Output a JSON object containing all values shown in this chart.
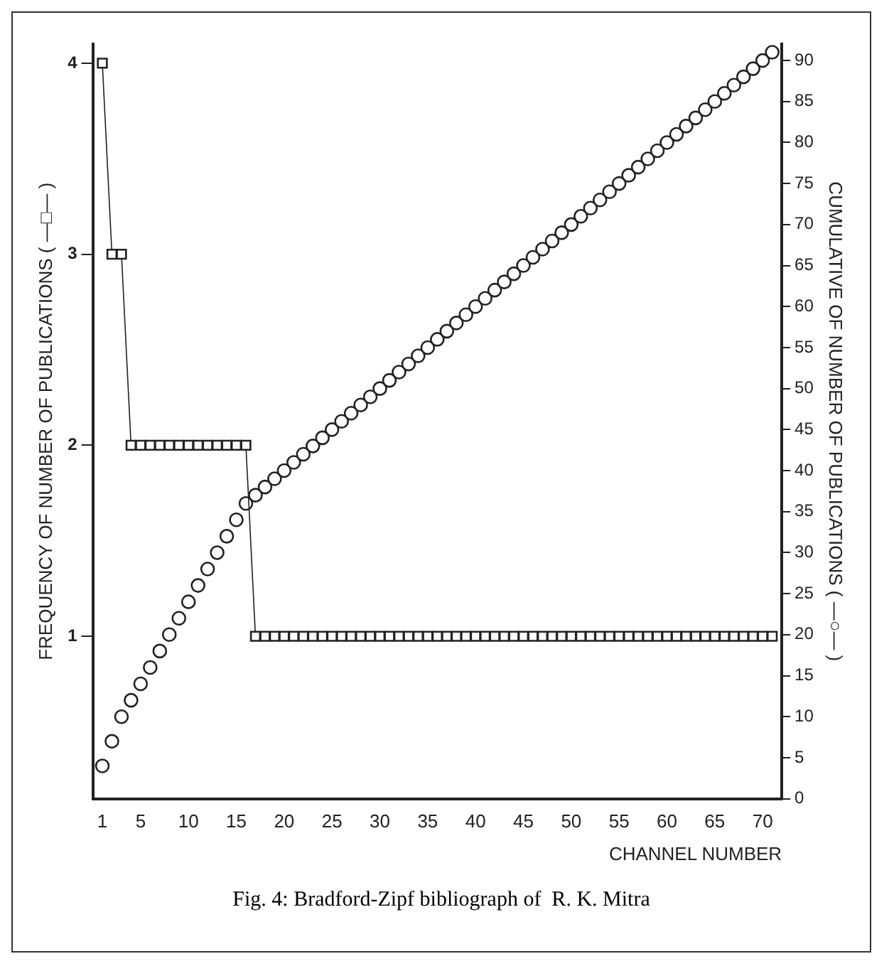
{
  "chart_data": {
    "type": "line",
    "xlabel": "CHANNEL NUMBER",
    "ylabel": "FREQUENCY OF NUMBER OF PUBLICATIONS ( —□— )",
    "y2label": "CUMULATIVE OF NUMBER OF PUBLICATIONS ( —○— )",
    "annotations": [
      "Fig. 4: Bradford-Zipf bibliograph of  R. K. Mitra"
    ],
    "x": [
      1,
      2,
      3,
      4,
      5,
      6,
      7,
      8,
      9,
      10,
      11,
      12,
      13,
      14,
      15,
      16,
      17,
      18,
      19,
      20,
      21,
      22,
      23,
      24,
      25,
      26,
      27,
      28,
      29,
      30,
      31,
      32,
      33,
      34,
      35,
      36,
      37,
      38,
      39,
      40,
      41,
      42,
      43,
      44,
      45,
      46,
      47,
      48,
      49,
      50,
      51,
      52,
      53,
      54,
      55,
      56,
      57,
      58,
      59,
      60,
      61,
      62,
      63,
      64,
      65,
      66,
      67,
      68,
      69,
      70,
      71
    ],
    "series": [
      {
        "marker": "square",
        "color": "#222222",
        "values": [
          4,
          3,
          3,
          2,
          2,
          2,
          2,
          2,
          2,
          2,
          2,
          2,
          2,
          2,
          2,
          2,
          1,
          1,
          1,
          1,
          1,
          1,
          1,
          1,
          1,
          1,
          1,
          1,
          1,
          1,
          1,
          1,
          1,
          1,
          1,
          1,
          1,
          1,
          1,
          1,
          1,
          1,
          1,
          1,
          1,
          1,
          1,
          1,
          1,
          1,
          1,
          1,
          1,
          1,
          1,
          1,
          1,
          1,
          1,
          1,
          1,
          1,
          1,
          1,
          1,
          1,
          1,
          1,
          1,
          1,
          1
        ]
      },
      {
        "type": "scatter",
        "marker": "circle",
        "axis": "y2",
        "color": "#222222",
        "values": [
          4,
          7,
          10,
          12,
          14,
          16,
          18,
          20,
          22,
          24,
          26,
          28,
          30,
          32,
          34,
          36,
          37,
          38,
          39,
          40,
          41,
          42,
          43,
          44,
          45,
          46,
          47,
          48,
          49,
          50,
          51,
          52,
          53,
          54,
          55,
          56,
          57,
          58,
          59,
          60,
          61,
          62,
          63,
          64,
          65,
          66,
          67,
          68,
          69,
          70,
          71,
          72,
          73,
          74,
          75,
          76,
          77,
          78,
          79,
          80,
          81,
          82,
          83,
          84,
          85,
          86,
          87,
          88,
          89,
          90,
          91
        ]
      }
    ],
    "xlim": [
      0,
      72
    ],
    "xticks": [
      1,
      5,
      10,
      15,
      20,
      25,
      30,
      35,
      40,
      45,
      50,
      55,
      60,
      65,
      70
    ],
    "ylim": [
      0.15,
      4.1
    ],
    "yticks": [
      1,
      2,
      3,
      4
    ],
    "y2lim": [
      0,
      92
    ],
    "y2ticks": [
      0,
      5,
      10,
      15,
      20,
      25,
      30,
      35,
      40,
      45,
      50,
      55,
      60,
      65,
      70,
      75,
      80,
      85,
      90
    ],
    "grid": false,
    "legend": false
  }
}
